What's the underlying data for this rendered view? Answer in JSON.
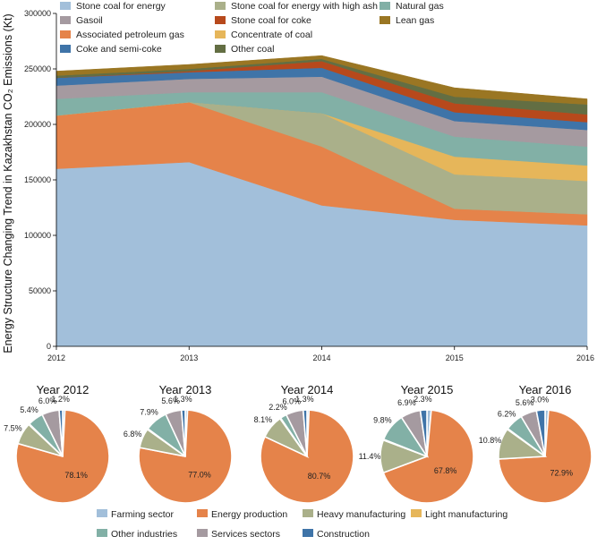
{
  "chart_data": [
    {
      "type": "area",
      "stacked": true,
      "title": "",
      "xlabel": "",
      "ylabel": "Energy Structure Changing Trend in Kazakhstan CO₂ Emissions (Kt)",
      "ylim": [
        0,
        300000
      ],
      "yticks": [
        "0",
        "50000",
        "100000",
        "150000",
        "200000",
        "250000",
        "300000"
      ],
      "x": [
        "2012",
        "2013",
        "2014",
        "2015",
        "2016"
      ],
      "grid": false,
      "legend_position": "top, inside plot",
      "series": [
        {
          "name": "Stone coal for energy",
          "color": "#a2bfda",
          "values": [
            160000,
            166000,
            127000,
            114000,
            109000
          ]
        },
        {
          "name": "Associated petroleum gas",
          "color": "#e5834a",
          "values": [
            48000,
            54000,
            53000,
            10000,
            10000
          ]
        },
        {
          "name": "Stone coal for energy with high ash",
          "color": "#aab08a",
          "values": [
            0,
            0,
            30000,
            31000,
            30000
          ]
        },
        {
          "name": "Concentrate of coal",
          "color": "#e6b65a",
          "values": [
            0,
            0,
            0,
            16000,
            14000
          ]
        },
        {
          "name": "Natural gas",
          "color": "#82b0a6",
          "values": [
            15000,
            9000,
            19000,
            18000,
            17000
          ]
        },
        {
          "name": "Gasoil",
          "color": "#a59aa0",
          "values": [
            12000,
            12000,
            14000,
            14000,
            15000
          ]
        },
        {
          "name": "Coke and semi-coke",
          "color": "#3f74a8",
          "values": [
            7000,
            6000,
            8000,
            8000,
            7000
          ]
        },
        {
          "name": "Stone coal for coke",
          "color": "#b7491c",
          "values": [
            0,
            1000,
            6000,
            8000,
            7000
          ]
        },
        {
          "name": "Other coal",
          "color": "#636e43",
          "values": [
            2000,
            2000,
            2000,
            6000,
            9000
          ]
        },
        {
          "name": "Lean gas",
          "color": "#9a7623",
          "values": [
            4000,
            4000,
            3000,
            8000,
            5000
          ]
        }
      ]
    },
    {
      "type": "pie",
      "title": "Year 2012",
      "labels": [
        "Farming sector",
        "Energy production",
        "Heavy manufacturing",
        "Light manufacturing",
        "Other industries",
        "Services sectors",
        "Construction"
      ],
      "values": [
        0.8,
        78.1,
        7.5,
        0.3,
        5.4,
        6.0,
        1.2
      ],
      "display_labels": [
        "",
        "78.1%",
        "7.5%",
        "",
        "5.4%",
        "6.0%",
        "1.2%"
      ]
    },
    {
      "type": "pie",
      "title": "Year 2013",
      "labels": [
        "Farming sector",
        "Energy production",
        "Heavy manufacturing",
        "Light manufacturing",
        "Other industries",
        "Services sectors",
        "Construction"
      ],
      "values": [
        0.8,
        77.0,
        6.8,
        0.3,
        7.9,
        5.6,
        1.3
      ],
      "display_labels": [
        "",
        "77.0%",
        "6.8%",
        "",
        "7.9%",
        "5.6%",
        "1.3%"
      ]
    },
    {
      "type": "pie",
      "title": "Year 2014",
      "labels": [
        "Farming sector",
        "Energy production",
        "Heavy manufacturing",
        "Light manufacturing",
        "Other industries",
        "Services sectors",
        "Construction"
      ],
      "values": [
        0.7,
        80.7,
        8.1,
        0.3,
        2.2,
        6.0,
        1.3
      ],
      "display_labels": [
        "",
        "80.7%",
        "8.1%",
        "",
        "2.2%",
        "6.0%",
        "1.3%"
      ]
    },
    {
      "type": "pie",
      "title": "Year 2015",
      "labels": [
        "Farming sector",
        "Energy production",
        "Heavy manufacturing",
        "Light manufacturing",
        "Other industries",
        "Services sectors",
        "Construction"
      ],
      "values": [
        1.5,
        67.8,
        11.4,
        0.3,
        9.8,
        6.9,
        2.3
      ],
      "display_labels": [
        "",
        "67.8%",
        "11.4%",
        "",
        "9.8%",
        "6.9%",
        "2.3%"
      ]
    },
    {
      "type": "pie",
      "title": "Year 2016",
      "labels": [
        "Farming sector",
        "Energy production",
        "Heavy manufacturing",
        "Light manufacturing",
        "Other industries",
        "Services sectors",
        "Construction"
      ],
      "values": [
        1.2,
        72.9,
        10.8,
        0.3,
        6.2,
        5.6,
        3.0
      ],
      "display_labels": [
        "",
        "72.9%",
        "10.8%",
        "",
        "6.2%",
        "5.6%",
        "3.0%"
      ]
    }
  ],
  "pie_legend": [
    {
      "name": "Farming sector",
      "color": "#a2bfda"
    },
    {
      "name": "Energy production",
      "color": "#e5834a"
    },
    {
      "name": "Heavy manufacturing",
      "color": "#aab08a"
    },
    {
      "name": "Light manufacturing",
      "color": "#e6b65a"
    },
    {
      "name": "Other industries",
      "color": "#82b0a6"
    },
    {
      "name": "Services sectors",
      "color": "#a59aa0"
    },
    {
      "name": "Construction",
      "color": "#3f74a8"
    }
  ],
  "area_legend_order": [
    "Stone coal for energy",
    "Stone coal for energy with high ash",
    "Natural gas",
    "Gasoil",
    "Stone coal for coke",
    "Lean gas",
    "Associated petroleum gas",
    "Concentrate of coal",
    "Coke and semi-coke",
    "Other coal"
  ]
}
